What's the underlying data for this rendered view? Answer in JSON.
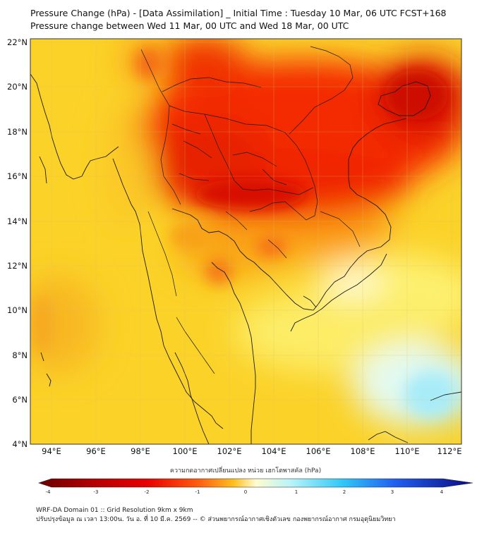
{
  "header": {
    "title_line1": "Pressure Change (hPa) - [Data Assimilation] _ Initial Time : Tuesday 10 Mar, 06 UTC FCST+168",
    "title_line2": "Pressure change between Wed 11 Mar, 00 UTC and Wed 18 Mar, 00 UTC"
  },
  "map": {
    "lat_labels": [
      "22°N",
      "20°N",
      "18°N",
      "16°N",
      "14°N",
      "12°N",
      "10°N",
      "8°N",
      "6°N",
      "4°N"
    ],
    "lon_labels": [
      "94°E",
      "96°E",
      "98°E",
      "100°E",
      "102°E",
      "104°E",
      "106°E",
      "108°E",
      "110°E",
      "112°E"
    ],
    "lat_range": [
      4,
      22.3
    ],
    "lon_range": [
      93,
      112.5
    ]
  },
  "colorbar": {
    "title": "ความกดอากาศเปลี่ยนแปลง หน่วย เฮกโตพาสคัล (hPa)",
    "tick_labels": [
      "-4",
      "-3",
      "-2",
      "-1",
      "0",
      "1",
      "2",
      "3",
      "4"
    ],
    "colors": {
      "min": "#6b0000",
      "neg3": "#d80000",
      "neg2": "#ff5a10",
      "neg1": "#ffc020",
      "zero": "#fffcd0",
      "pos1": "#b8f4f8",
      "pos2": "#30c8f8",
      "pos3": "#2050f0",
      "max": "#0a0a80"
    }
  },
  "footer": {
    "line1": "WRF-DA Domain 01 :: Grid Resolution 9km x 9km",
    "line2": "ปรับปรุงข้อมูล ณ เวลา 13:00น. วัน อ. ที่ 10 มี.ค. 2569 -- © ส่วนพยากรณ์อากาศเชิงตัวเลข กองพยากรณ์อากาศ กรมอุตุนิยมวิทยา"
  }
}
